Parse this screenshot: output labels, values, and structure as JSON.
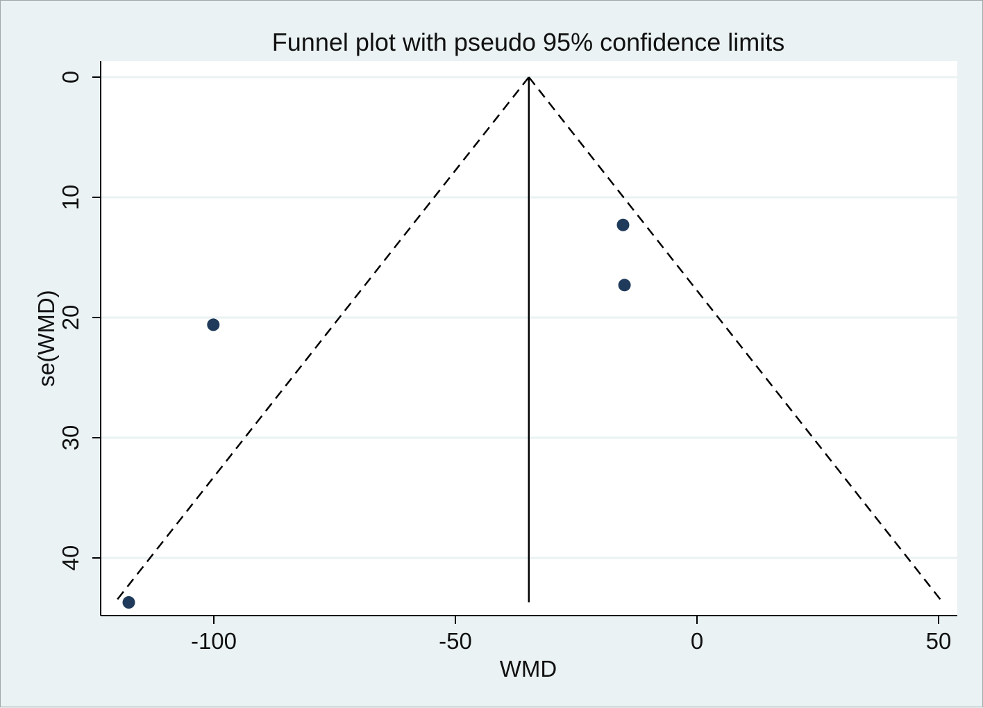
{
  "chart_data": {
    "type": "scatter",
    "title": "Funnel plot with pseudo 95% confidence limits",
    "xlabel": "WMD",
    "ylabel": "se(WMD)",
    "xlim": [
      -123.5,
      53.5
    ],
    "ylim": [
      0,
      44.9
    ],
    "y_reversed": true,
    "x_ticks": [
      -100,
      -50,
      0,
      50
    ],
    "x_tick_labels": [
      "-100",
      "-50",
      "0",
      "50"
    ],
    "y_ticks": [
      0,
      10,
      20,
      30,
      40
    ],
    "y_tick_labels": [
      "0",
      "10",
      "20",
      "30",
      "40"
    ],
    "grid": "horizontal",
    "pooled_estimate": -34.8,
    "se_max": 43.7,
    "funnel_z": 1.96,
    "points": [
      {
        "x": -15.3,
        "y": 12.3
      },
      {
        "x": -15.0,
        "y": 17.3
      },
      {
        "x": -100.1,
        "y": 20.6
      },
      {
        "x": -117.6,
        "y": 43.7
      }
    ],
    "colors": {
      "background": "#eaf2f3",
      "plot_background": "#ffffff",
      "gridline": "#eaf2f3",
      "marker": "#1f3a5a",
      "lines": "#000000"
    }
  }
}
